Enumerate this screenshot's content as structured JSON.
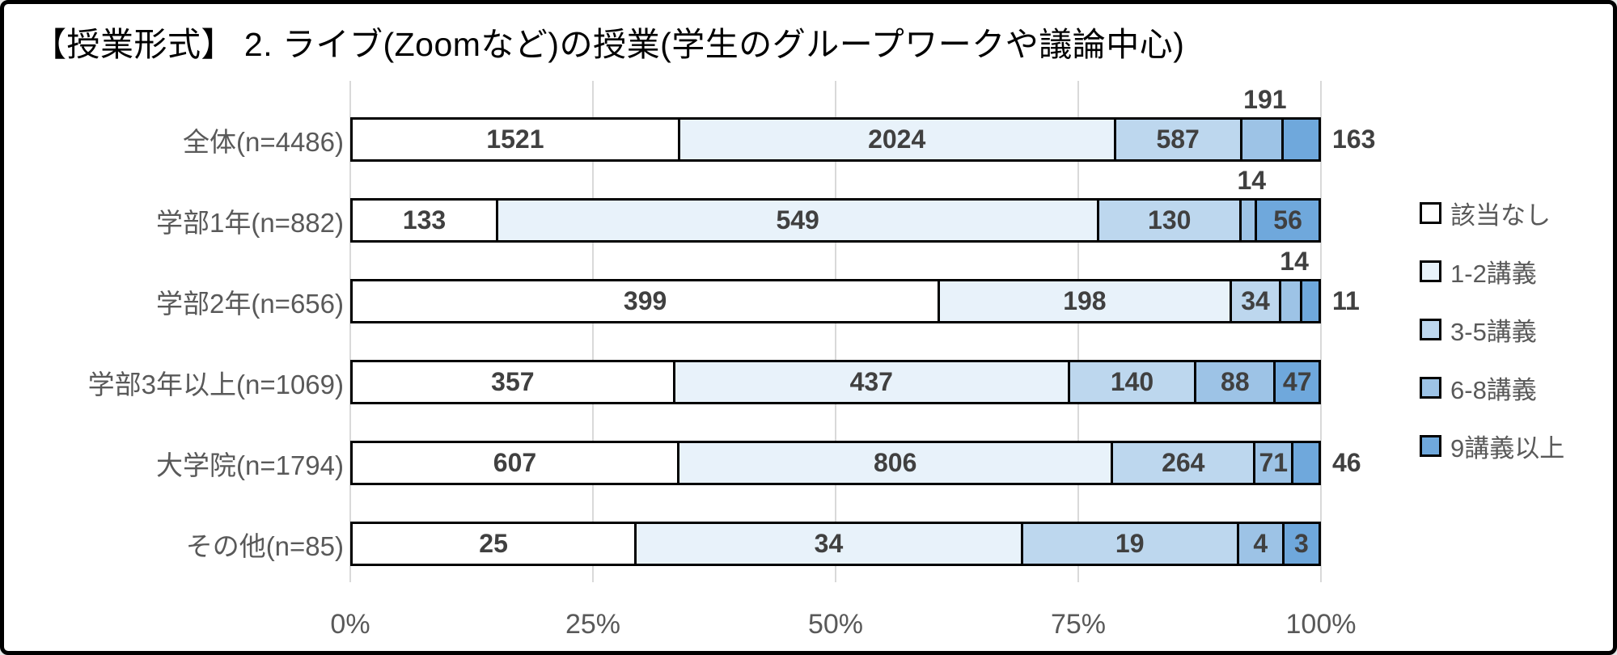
{
  "title": "【授業形式】 2. ライブ(Zoomなど)の授業(学生のグループワークや議論中心)",
  "chart_data": {
    "type": "bar",
    "stacked": true,
    "percent_stacked": true,
    "orientation": "horizontal",
    "title": "【授業形式】 2. ライブ(Zoomなど)の授業(学生のグループワークや議論中心)",
    "categories": [
      "全体(n=4486)",
      "学部1年(n=882)",
      "学部2年(n=656)",
      "学部3年以上(n=1069)",
      "大学院(n=1794)",
      "その他(n=85)"
    ],
    "row_totals": [
      4486,
      882,
      656,
      1069,
      1794,
      85
    ],
    "series": [
      {
        "name": "該当なし",
        "color": "#FFFFFF",
        "values": [
          1521,
          133,
          399,
          357,
          607,
          25
        ]
      },
      {
        "name": "1-2講義",
        "color": "#E8F2FA",
        "values": [
          2024,
          549,
          198,
          437,
          806,
          34
        ]
      },
      {
        "name": "3-5講義",
        "color": "#BDD7EE",
        "values": [
          587,
          130,
          34,
          140,
          264,
          19
        ]
      },
      {
        "name": "6-8講義",
        "color": "#9DC3E6",
        "values": [
          191,
          14,
          14,
          88,
          71,
          4
        ]
      },
      {
        "name": "9講義以上",
        "color": "#6FA8DC",
        "values": [
          163,
          56,
          11,
          47,
          46,
          3
        ]
      }
    ],
    "label_placements": [
      [
        "inside",
        "inside",
        "inside",
        "above",
        "outside"
      ],
      [
        "inside",
        "inside",
        "inside",
        "above",
        "inside"
      ],
      [
        "inside",
        "inside",
        "inside",
        "above",
        "outside"
      ],
      [
        "inside",
        "inside",
        "inside",
        "inside",
        "inside"
      ],
      [
        "inside",
        "inside",
        "inside",
        "inside",
        "outside"
      ],
      [
        "inside",
        "inside",
        "inside",
        "inside",
        "inside"
      ]
    ],
    "xlim": [
      0,
      100
    ],
    "x_tick_labels": [
      "0%",
      "25%",
      "50%",
      "75%",
      "100%"
    ],
    "x_tick_percents": [
      0,
      25,
      50,
      75,
      100
    ],
    "grid": true,
    "legend_position": "right"
  },
  "colors": {
    "grid": "#D9D9D9",
    "bar_border": "#000000",
    "value_label": "#404040",
    "category_label": "#595959",
    "axis_label": "#595959",
    "frame_border": "#000000",
    "background": "#FFFFFF"
  }
}
